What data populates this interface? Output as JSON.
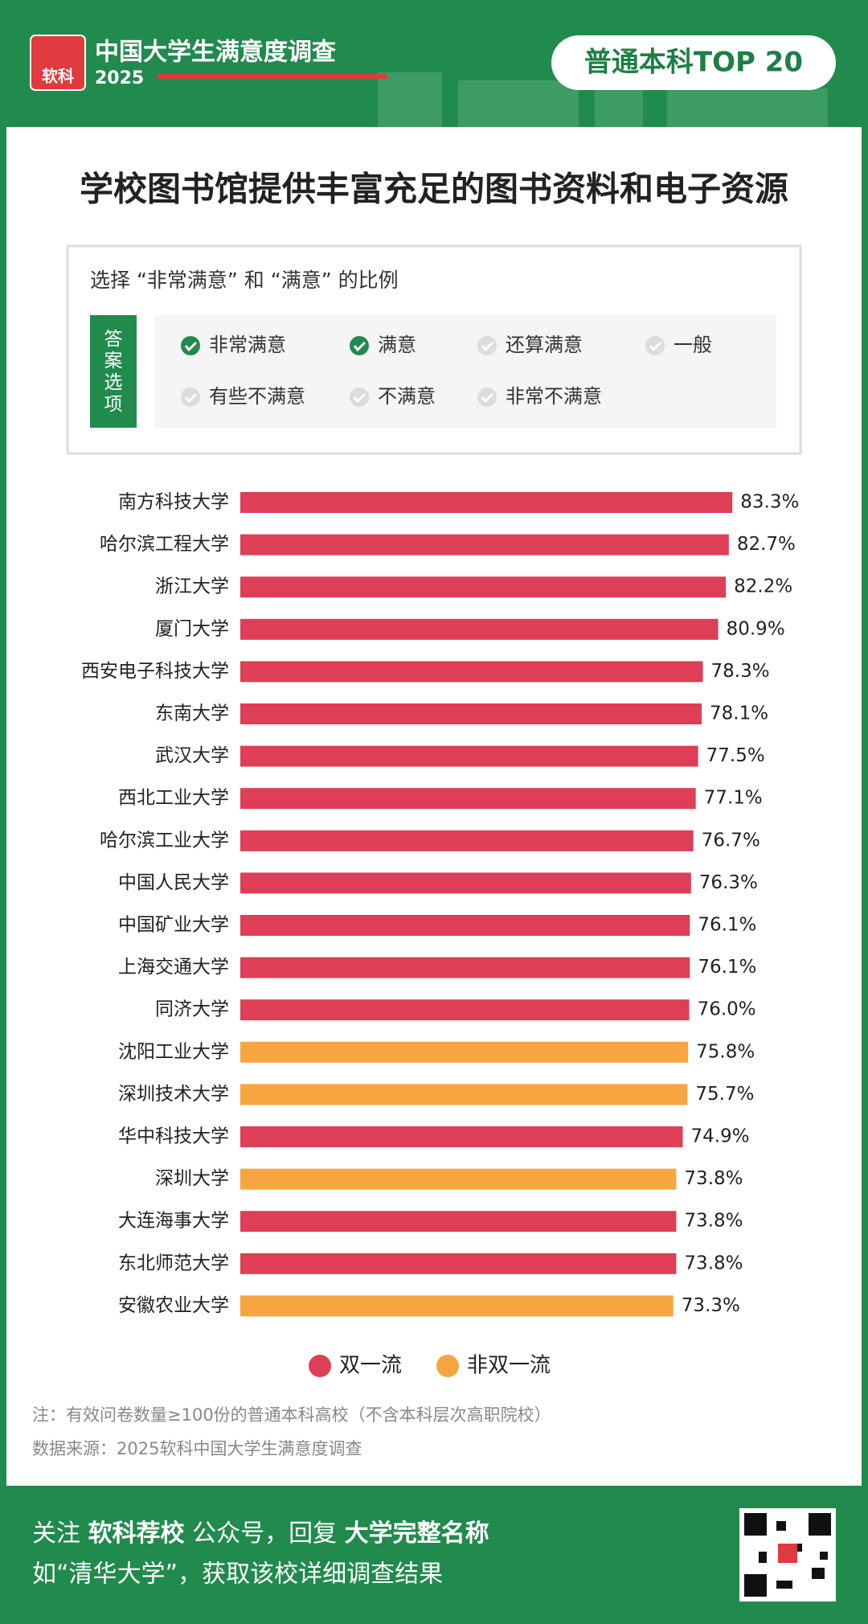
{
  "header": {
    "logo": "软科",
    "brand": "中国大学生满意度调查",
    "year": "2025",
    "badge": "普通本科TOP 20"
  },
  "question": {
    "prompt": "选择 “非常满意” 和 “满意” 的比例",
    "options_label": "答案选项",
    "options": [
      {
        "text": "非常满意",
        "checked": true
      },
      {
        "text": "满意",
        "checked": true
      },
      {
        "text": "还算满意",
        "checked": false
      },
      {
        "text": "一般",
        "checked": false
      },
      {
        "text": "有些不满意",
        "checked": false
      },
      {
        "text": "不满意",
        "checked": false
      },
      {
        "text": "非常不满意",
        "checked": false
      }
    ]
  },
  "chart_data": {
    "type": "bar",
    "orientation": "horizontal",
    "title": "学校图书馆提供丰富充足的图书资料和电子资源",
    "categories": [
      "南方科技大学",
      "哈尔滨工程大学",
      "浙江大学",
      "厦门大学",
      "西安电子科技大学",
      "东南大学",
      "武汉大学",
      "西北工业大学",
      "哈尔滨工业大学",
      "中国人民大学",
      "中国矿业大学",
      "上海交通大学",
      "同济大学",
      "沈阳工业大学",
      "深圳技术大学",
      "华中科技大学",
      "深圳大学",
      "大连海事大学",
      "东北师范大学",
      "安徽农业大学"
    ],
    "values": [
      83.3,
      82.7,
      82.2,
      80.9,
      78.3,
      78.1,
      77.5,
      77.1,
      76.7,
      76.3,
      76.1,
      76.1,
      76.0,
      75.8,
      75.7,
      74.9,
      73.8,
      73.8,
      73.8,
      73.3
    ],
    "value_labels": [
      "83.3%",
      "82.7%",
      "82.2%",
      "80.9%",
      "78.3%",
      "78.1%",
      "77.5%",
      "77.1%",
      "76.7%",
      "76.3%",
      "76.1%",
      "76.1%",
      "76.0%",
      "75.8%",
      "75.7%",
      "74.9%",
      "73.8%",
      "73.8%",
      "73.8%",
      "73.3%"
    ],
    "colors": [
      "#de3f56",
      "#de3f56",
      "#de3f56",
      "#de3f56",
      "#de3f56",
      "#de3f56",
      "#de3f56",
      "#de3f56",
      "#de3f56",
      "#de3f56",
      "#de3f56",
      "#de3f56",
      "#de3f56",
      "#f7a541",
      "#f7a541",
      "#de3f56",
      "#f7a541",
      "#de3f56",
      "#de3f56",
      "#f7a541"
    ],
    "legend": [
      {
        "name": "双一流",
        "color": "#de3f56"
      },
      {
        "name": "非双一流",
        "color": "#f7a541"
      }
    ]
  },
  "notes": [
    "注：有效问卷数量≥100份的普通本科高校（不含本科层次高职院校）",
    "数据来源：2025软科中国大学生满意度调查"
  ],
  "footer": {
    "line1": [
      {
        "text": "关注 ",
        "bold": false
      },
      {
        "text": "软科荐校",
        "bold": true
      },
      {
        "text": " 公众号，回复 ",
        "bold": false
      },
      {
        "text": "大学完整名称",
        "bold": true
      }
    ],
    "line2": "如“清华大学”，获取该校详细调查结果"
  }
}
